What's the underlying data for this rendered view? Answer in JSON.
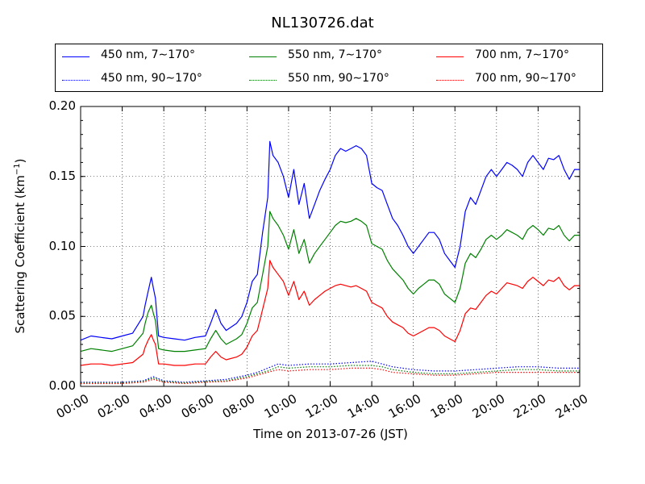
{
  "chart_data": {
    "type": "line",
    "title": "NL130726.dat",
    "xlabel": "Time on 2013-07-26 (JST)",
    "ylabel": "Scattering Coefficient (km",
    "ylabel_sup": "−1",
    "ylabel_close": ")",
    "xlim": [
      0,
      24
    ],
    "ylim": [
      0,
      0.2
    ],
    "grid": true,
    "legend_position": "top, above plot, 3 columns",
    "x_ticks": [
      "00:00",
      "02:00",
      "04:00",
      "06:00",
      "08:00",
      "10:00",
      "12:00",
      "14:00",
      "16:00",
      "18:00",
      "20:00",
      "22:00",
      "24:00"
    ],
    "y_ticks": [
      "0.00",
      "0.05",
      "0.10",
      "0.15",
      "0.20"
    ],
    "x_unit": "hour",
    "series": [
      {
        "name": "450 nm, 7∼170°",
        "color": "#0000ff",
        "style": "solid",
        "x": [
          0,
          0.5,
          1,
          1.5,
          2,
          2.5,
          3,
          3.1,
          3.25,
          3.4,
          3.5,
          3.6,
          3.75,
          4,
          4.5,
          5,
          5.5,
          6,
          6.25,
          6.5,
          6.75,
          7,
          7.5,
          7.75,
          8,
          8.25,
          8.5,
          8.75,
          9,
          9.1,
          9.25,
          9.5,
          9.75,
          10,
          10.25,
          10.5,
          10.75,
          11,
          11.25,
          11.5,
          11.75,
          12,
          12.25,
          12.5,
          12.75,
          13,
          13.25,
          13.5,
          13.75,
          14,
          14.25,
          14.5,
          14.75,
          15,
          15.25,
          15.5,
          15.75,
          16,
          16.25,
          16.5,
          16.75,
          17,
          17.25,
          17.5,
          17.75,
          18,
          18.25,
          18.5,
          18.75,
          19,
          19.25,
          19.5,
          19.75,
          20,
          20.25,
          20.5,
          20.75,
          21,
          21.25,
          21.5,
          21.75,
          22,
          22.25,
          22.5,
          22.75,
          23,
          23.25,
          23.5,
          23.75,
          24
        ],
        "y": [
          0.033,
          0.036,
          0.035,
          0.034,
          0.036,
          0.038,
          0.05,
          0.058,
          0.068,
          0.078,
          0.07,
          0.063,
          0.036,
          0.035,
          0.034,
          0.033,
          0.035,
          0.036,
          0.045,
          0.055,
          0.045,
          0.04,
          0.045,
          0.05,
          0.06,
          0.075,
          0.08,
          0.11,
          0.135,
          0.175,
          0.165,
          0.16,
          0.15,
          0.135,
          0.155,
          0.13,
          0.145,
          0.12,
          0.13,
          0.14,
          0.148,
          0.155,
          0.165,
          0.17,
          0.168,
          0.17,
          0.172,
          0.17,
          0.165,
          0.145,
          0.142,
          0.14,
          0.13,
          0.12,
          0.115,
          0.108,
          0.1,
          0.095,
          0.1,
          0.105,
          0.11,
          0.11,
          0.105,
          0.095,
          0.09,
          0.085,
          0.1,
          0.125,
          0.135,
          0.13,
          0.14,
          0.15,
          0.155,
          0.15,
          0.155,
          0.16,
          0.158,
          0.155,
          0.15,
          0.16,
          0.165,
          0.16,
          0.155,
          0.163,
          0.162,
          0.165,
          0.155,
          0.148,
          0.155,
          0.155
        ]
      },
      {
        "name": "550 nm, 7∼170°",
        "color": "#008000",
        "style": "solid",
        "x": [
          0,
          0.5,
          1,
          1.5,
          2,
          2.5,
          3,
          3.1,
          3.25,
          3.4,
          3.5,
          3.6,
          3.75,
          4,
          4.5,
          5,
          5.5,
          6,
          6.25,
          6.5,
          6.75,
          7,
          7.5,
          7.75,
          8,
          8.25,
          8.5,
          8.75,
          9,
          9.1,
          9.25,
          9.5,
          9.75,
          10,
          10.25,
          10.5,
          10.75,
          11,
          11.25,
          11.5,
          11.75,
          12,
          12.25,
          12.5,
          12.75,
          13,
          13.25,
          13.5,
          13.75,
          14,
          14.25,
          14.5,
          14.75,
          15,
          15.25,
          15.5,
          15.75,
          16,
          16.25,
          16.5,
          16.75,
          17,
          17.25,
          17.5,
          17.75,
          18,
          18.25,
          18.5,
          18.75,
          19,
          19.25,
          19.5,
          19.75,
          20,
          20.25,
          20.5,
          20.75,
          21,
          21.25,
          21.5,
          21.75,
          22,
          22.25,
          22.5,
          22.75,
          23,
          23.25,
          23.5,
          23.75,
          24
        ],
        "y": [
          0.025,
          0.027,
          0.026,
          0.025,
          0.027,
          0.029,
          0.038,
          0.045,
          0.053,
          0.058,
          0.052,
          0.047,
          0.027,
          0.026,
          0.025,
          0.025,
          0.026,
          0.027,
          0.034,
          0.04,
          0.034,
          0.03,
          0.034,
          0.037,
          0.045,
          0.056,
          0.06,
          0.08,
          0.1,
          0.125,
          0.12,
          0.115,
          0.108,
          0.098,
          0.112,
          0.095,
          0.105,
          0.088,
          0.095,
          0.1,
          0.105,
          0.11,
          0.115,
          0.118,
          0.117,
          0.118,
          0.12,
          0.118,
          0.115,
          0.102,
          0.1,
          0.098,
          0.09,
          0.084,
          0.08,
          0.076,
          0.07,
          0.066,
          0.07,
          0.073,
          0.076,
          0.076,
          0.073,
          0.066,
          0.063,
          0.06,
          0.07,
          0.088,
          0.095,
          0.092,
          0.098,
          0.105,
          0.108,
          0.105,
          0.108,
          0.112,
          0.11,
          0.108,
          0.105,
          0.112,
          0.115,
          0.112,
          0.108,
          0.113,
          0.112,
          0.115,
          0.108,
          0.104,
          0.108,
          0.108
        ]
      },
      {
        "name": "700 nm, 7∼170°",
        "color": "#ff0000",
        "style": "solid",
        "x": [
          0,
          0.5,
          1,
          1.5,
          2,
          2.5,
          3,
          3.1,
          3.25,
          3.4,
          3.5,
          3.6,
          3.75,
          4,
          4.5,
          5,
          5.5,
          6,
          6.25,
          6.5,
          6.75,
          7,
          7.5,
          7.75,
          8,
          8.25,
          8.5,
          8.75,
          9,
          9.1,
          9.25,
          9.5,
          9.75,
          10,
          10.25,
          10.5,
          10.75,
          11,
          11.25,
          11.5,
          11.75,
          12,
          12.25,
          12.5,
          12.75,
          13,
          13.25,
          13.5,
          13.75,
          14,
          14.25,
          14.5,
          14.75,
          15,
          15.25,
          15.5,
          15.75,
          16,
          16.25,
          16.5,
          16.75,
          17,
          17.25,
          17.5,
          17.75,
          18,
          18.25,
          18.5,
          18.75,
          19,
          19.25,
          19.5,
          19.75,
          20,
          20.25,
          20.5,
          20.75,
          21,
          21.25,
          21.5,
          21.75,
          22,
          22.25,
          22.5,
          22.75,
          23,
          23.25,
          23.5,
          23.75,
          24
        ],
        "y": [
          0.015,
          0.016,
          0.016,
          0.015,
          0.016,
          0.017,
          0.023,
          0.028,
          0.033,
          0.037,
          0.033,
          0.03,
          0.016,
          0.016,
          0.015,
          0.015,
          0.016,
          0.016,
          0.021,
          0.025,
          0.021,
          0.019,
          0.021,
          0.023,
          0.028,
          0.036,
          0.04,
          0.055,
          0.07,
          0.09,
          0.085,
          0.08,
          0.075,
          0.065,
          0.075,
          0.062,
          0.068,
          0.058,
          0.062,
          0.065,
          0.068,
          0.07,
          0.072,
          0.073,
          0.072,
          0.071,
          0.072,
          0.07,
          0.068,
          0.06,
          0.058,
          0.056,
          0.05,
          0.046,
          0.044,
          0.042,
          0.038,
          0.036,
          0.038,
          0.04,
          0.042,
          0.042,
          0.04,
          0.036,
          0.034,
          0.032,
          0.04,
          0.052,
          0.056,
          0.055,
          0.06,
          0.065,
          0.068,
          0.066,
          0.07,
          0.074,
          0.073,
          0.072,
          0.07,
          0.075,
          0.078,
          0.075,
          0.072,
          0.076,
          0.075,
          0.078,
          0.072,
          0.069,
          0.072,
          0.072
        ]
      },
      {
        "name": "450 nm, 90∼170°",
        "color": "#0000ff",
        "style": "dotted",
        "x": [
          0,
          1,
          2,
          3,
          3.5,
          4,
          5,
          6,
          7,
          8,
          8.5,
          9,
          9.5,
          10,
          11,
          12,
          13,
          14,
          14.5,
          15,
          16,
          17,
          18,
          19,
          20,
          21,
          22,
          23,
          24
        ],
        "y": [
          0.003,
          0.003,
          0.003,
          0.004,
          0.007,
          0.004,
          0.003,
          0.004,
          0.005,
          0.008,
          0.01,
          0.013,
          0.016,
          0.015,
          0.016,
          0.016,
          0.017,
          0.018,
          0.016,
          0.014,
          0.012,
          0.011,
          0.011,
          0.012,
          0.013,
          0.014,
          0.014,
          0.013,
          0.013
        ]
      },
      {
        "name": "550 nm, 90∼170°",
        "color": "#008000",
        "style": "dotted",
        "x": [
          0,
          1,
          2,
          3,
          3.5,
          4,
          5,
          6,
          7,
          8,
          8.5,
          9,
          9.5,
          10,
          11,
          12,
          13,
          14,
          14.5,
          15,
          16,
          17,
          18,
          19,
          20,
          21,
          22,
          23,
          24
        ],
        "y": [
          0.0025,
          0.0025,
          0.0025,
          0.0035,
          0.006,
          0.0035,
          0.0025,
          0.0035,
          0.004,
          0.007,
          0.009,
          0.011,
          0.014,
          0.013,
          0.014,
          0.014,
          0.015,
          0.015,
          0.014,
          0.012,
          0.01,
          0.009,
          0.009,
          0.01,
          0.011,
          0.012,
          0.012,
          0.011,
          0.011
        ]
      },
      {
        "name": "700 nm, 90∼170°",
        "color": "#ff0000",
        "style": "dotted",
        "x": [
          0,
          1,
          2,
          3,
          3.5,
          4,
          5,
          6,
          7,
          8,
          8.5,
          9,
          9.5,
          10,
          11,
          12,
          13,
          14,
          14.5,
          15,
          16,
          17,
          18,
          19,
          20,
          21,
          22,
          23,
          24
        ],
        "y": [
          0.002,
          0.002,
          0.002,
          0.003,
          0.005,
          0.003,
          0.002,
          0.003,
          0.0035,
          0.006,
          0.008,
          0.01,
          0.012,
          0.011,
          0.012,
          0.012,
          0.013,
          0.013,
          0.012,
          0.01,
          0.009,
          0.008,
          0.008,
          0.009,
          0.01,
          0.01,
          0.01,
          0.01,
          0.01
        ]
      }
    ]
  }
}
